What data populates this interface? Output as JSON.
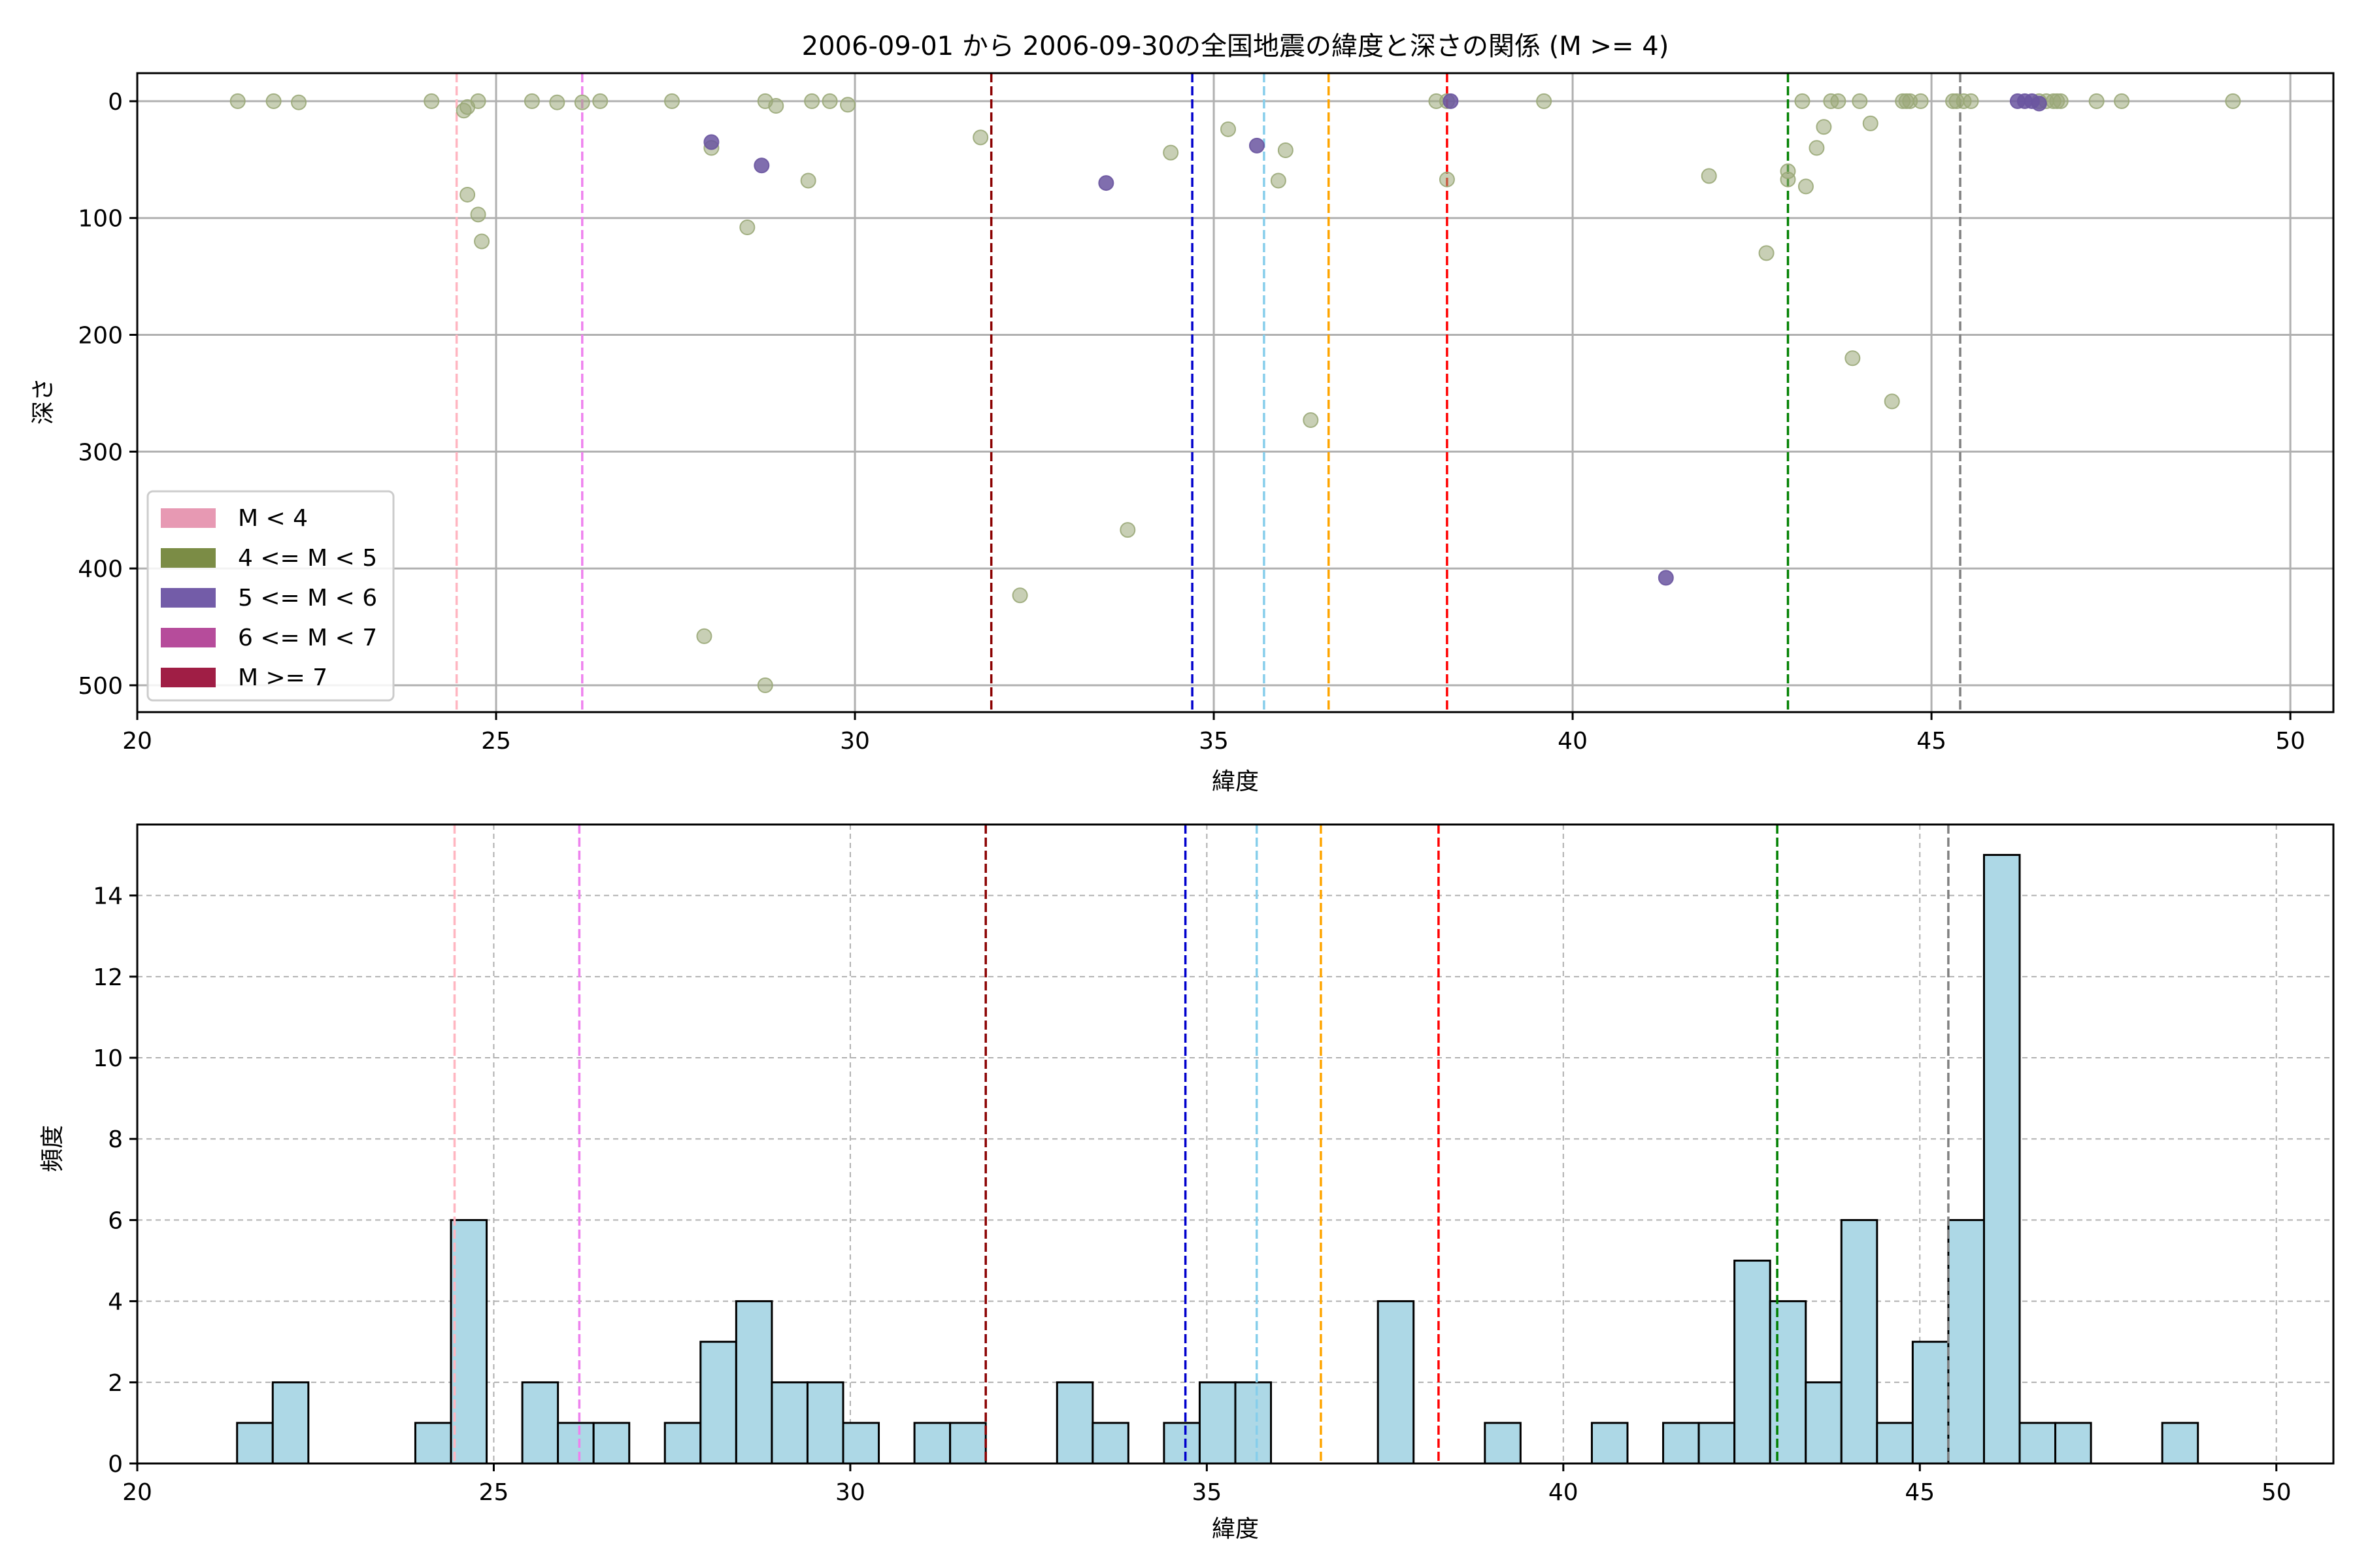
{
  "title": "2006-09-01 から 2006-09-30の全国地震の緯度と深さの関係 (M >= 4)",
  "colors": {
    "depth_marker": "#9aa878",
    "m5_marker": "#6a55a0",
    "hist_fill": "#add8e6",
    "hist_edge": "#000000",
    "grid": "#b0b0b0"
  },
  "chart_data": [
    {
      "type": "scatter",
      "title": "2006-09-01 から 2006-09-30の全国地震の緯度と深さの関係 (M >= 4)",
      "xlabel": "緯度",
      "ylabel": "深さ",
      "xlim": [
        20,
        50.6
      ],
      "ylim": [
        523,
        -24
      ],
      "y_inverted": true,
      "grid": true,
      "xticks": [
        "20",
        "25",
        "30",
        "35",
        "40",
        "45",
        "50"
      ],
      "yticks": [
        "0",
        "100",
        "200",
        "300",
        "400",
        "500"
      ],
      "legend_position": "lower-left",
      "legend": [
        {
          "label": "M < 4",
          "color": "#e799b3"
        },
        {
          "label": "4 <= M < 5",
          "color": "#7b8c45"
        },
        {
          "label": "5 <= M < 6",
          "color": "#735ca8"
        },
        {
          "label": "6 <= M < 7",
          "color": "#b64c9b"
        },
        {
          "label": "M >= 7",
          "color": "#a01e45"
        }
      ],
      "vlines": [
        {
          "x": 24.45,
          "color": "#ffb6c1"
        },
        {
          "x": 26.2,
          "color": "#ee82ee"
        },
        {
          "x": 31.9,
          "color": "#8b0000"
        },
        {
          "x": 34.7,
          "color": "#0000cd"
        },
        {
          "x": 35.7,
          "color": "#87ceeb"
        },
        {
          "x": 36.6,
          "color": "#ffa500"
        },
        {
          "x": 38.25,
          "color": "#ff0000"
        },
        {
          "x": 43.0,
          "color": "#008000"
        },
        {
          "x": 45.4,
          "color": "#808080"
        }
      ],
      "series": [
        {
          "magnitude_class": "4 <= M < 5",
          "points": [
            [
              21.4,
              0
            ],
            [
              21.9,
              0
            ],
            [
              22.25,
              1
            ],
            [
              24.1,
              0
            ],
            [
              24.55,
              8
            ],
            [
              24.6,
              5
            ],
            [
              24.6,
              80
            ],
            [
              24.75,
              0
            ],
            [
              24.75,
              97
            ],
            [
              24.8,
              120
            ],
            [
              25.5,
              0
            ],
            [
              25.85,
              1
            ],
            [
              26.2,
              1
            ],
            [
              26.45,
              0
            ],
            [
              27.45,
              0
            ],
            [
              28.0,
              40
            ],
            [
              27.9,
              458
            ],
            [
              28.5,
              108
            ],
            [
              28.75,
              0
            ],
            [
              28.75,
              500
            ],
            [
              28.9,
              4
            ],
            [
              29.35,
              68
            ],
            [
              29.4,
              0
            ],
            [
              29.65,
              0
            ],
            [
              29.9,
              3
            ],
            [
              31.75,
              31
            ],
            [
              32.3,
              423
            ],
            [
              33.8,
              367
            ],
            [
              34.4,
              44
            ],
            [
              35.2,
              24
            ],
            [
              35.9,
              68
            ],
            [
              36.0,
              42
            ],
            [
              36.35,
              273
            ],
            [
              38.1,
              0
            ],
            [
              38.25,
              0
            ],
            [
              38.25,
              67
            ],
            [
              39.6,
              0
            ],
            [
              41.9,
              64
            ],
            [
              42.7,
              130
            ],
            [
              43.2,
              0
            ],
            [
              43.0,
              60
            ],
            [
              43.0,
              67
            ],
            [
              43.25,
              73
            ],
            [
              43.4,
              40
            ],
            [
              43.5,
              22
            ],
            [
              43.6,
              0
            ],
            [
              43.7,
              0
            ],
            [
              43.9,
              220
            ],
            [
              44.0,
              0
            ],
            [
              44.15,
              19
            ],
            [
              44.45,
              257
            ],
            [
              44.6,
              0
            ],
            [
              44.65,
              0
            ],
            [
              44.7,
              0
            ],
            [
              44.85,
              0
            ],
            [
              45.3,
              0
            ],
            [
              45.35,
              0
            ],
            [
              45.45,
              0
            ],
            [
              45.55,
              0
            ],
            [
              46.5,
              0
            ],
            [
              46.6,
              0
            ],
            [
              46.7,
              0
            ],
            [
              46.75,
              0
            ],
            [
              46.8,
              0
            ],
            [
              47.3,
              0
            ],
            [
              47.65,
              0
            ],
            [
              49.2,
              0
            ]
          ]
        },
        {
          "magnitude_class": "5 <= M < 6",
          "points": [
            [
              28.0,
              35
            ],
            [
              28.7,
              55
            ],
            [
              33.5,
              70
            ],
            [
              35.6,
              38
            ],
            [
              38.3,
              0
            ],
            [
              41.3,
              408
            ],
            [
              46.2,
              0
            ],
            [
              46.3,
              0
            ],
            [
              46.4,
              0
            ],
            [
              46.5,
              2
            ]
          ]
        }
      ]
    },
    {
      "type": "bar",
      "subtype": "histogram",
      "xlabel": "緯度",
      "ylabel": "頻度",
      "xlim": [
        20,
        50.8
      ],
      "ylim": [
        0,
        15.75
      ],
      "grid": true,
      "xticks": [
        "20",
        "25",
        "30",
        "35",
        "40",
        "45",
        "50"
      ],
      "yticks": [
        "0",
        "2",
        "4",
        "6",
        "8",
        "10",
        "12",
        "14"
      ],
      "bin_start": 21.4,
      "bin_width": 0.5,
      "counts": [
        1,
        2,
        0,
        0,
        0,
        1,
        6,
        0,
        2,
        1,
        1,
        0,
        1,
        3,
        4,
        2,
        2,
        1,
        0,
        1,
        1,
        0,
        0,
        2,
        1,
        0,
        1,
        2,
        2,
        0,
        0,
        0,
        4,
        0,
        0,
        1,
        0,
        0,
        1,
        0,
        1,
        1,
        5,
        4,
        2,
        6,
        1,
        3,
        6,
        15,
        1,
        1,
        0,
        0,
        1
      ],
      "vlines": [
        {
          "x": 24.45,
          "color": "#ffb6c1"
        },
        {
          "x": 26.2,
          "color": "#ee82ee"
        },
        {
          "x": 31.9,
          "color": "#8b0000"
        },
        {
          "x": 34.7,
          "color": "#0000cd"
        },
        {
          "x": 35.7,
          "color": "#87ceeb"
        },
        {
          "x": 36.6,
          "color": "#ffa500"
        },
        {
          "x": 38.25,
          "color": "#ff0000"
        },
        {
          "x": 43.0,
          "color": "#008000"
        },
        {
          "x": 45.4,
          "color": "#808080"
        }
      ]
    }
  ]
}
